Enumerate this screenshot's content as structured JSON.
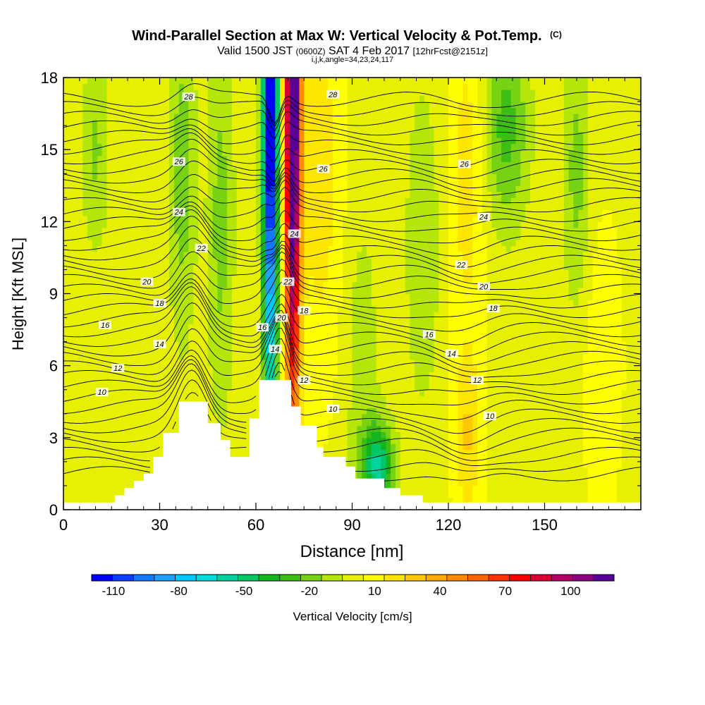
{
  "chart_data": {
    "type": "heatmap",
    "title": "Wind-Parallel Section at Max W: Vertical Velocity & Pot.Temp.",
    "title_mark": "(C)",
    "subtitle_parts": [
      "Valid 1500 JST ",
      "(0600Z)",
      " SAT 4 Feb 2017 ",
      "[12hrFcst@2151z]"
    ],
    "subtitle2": "i,j,k,angle=34,23,24,117",
    "xlabel": "Distance [nm]",
    "ylabel": "Height [Kft MSL]",
    "xlim": [
      0,
      180
    ],
    "ylim": [
      0,
      18
    ],
    "xticks": [
      0,
      30,
      60,
      90,
      120,
      150
    ],
    "yticks": [
      0,
      3,
      6,
      9,
      12,
      15,
      18
    ],
    "colorbar": {
      "label": "Vertical Velocity [cm/s]",
      "labels": [
        "-110",
        "-80",
        "-50",
        "-20",
        "10",
        "40",
        "70",
        "100"
      ],
      "label_values": [
        -110,
        -80,
        -50,
        -20,
        10,
        40,
        70,
        100
      ],
      "min": -120,
      "max": 120,
      "colors": [
        "#0000ff",
        "#0a3cff",
        "#1478ff",
        "#1ea0ff",
        "#00c8ff",
        "#00dcdc",
        "#00d2a0",
        "#00c864",
        "#14b41e",
        "#3cbe14",
        "#78d214",
        "#b4e60a",
        "#e6f000",
        "#ffff00",
        "#ffe600",
        "#ffc800",
        "#ffaa00",
        "#ff8c00",
        "#ff6400",
        "#ff3200",
        "#ff0000",
        "#dc0032",
        "#b40064",
        "#8c0082",
        "#5a0096"
      ]
    },
    "contour_labels": [
      {
        "x": 12,
        "y": 4.9,
        "text": "10"
      },
      {
        "x": 17,
        "y": 5.9,
        "text": "12"
      },
      {
        "x": 30,
        "y": 6.9,
        "text": "14"
      },
      {
        "x": 13,
        "y": 7.7,
        "text": "16"
      },
      {
        "x": 30,
        "y": 8.6,
        "text": "18"
      },
      {
        "x": 26,
        "y": 9.5,
        "text": "20"
      },
      {
        "x": 43,
        "y": 10.9,
        "text": "22"
      },
      {
        "x": 36,
        "y": 12.4,
        "text": "24"
      },
      {
        "x": 36,
        "y": 14.5,
        "text": "26"
      },
      {
        "x": 39,
        "y": 17.2,
        "text": "28"
      },
      {
        "x": 84,
        "y": 4.2,
        "text": "10"
      },
      {
        "x": 75,
        "y": 5.4,
        "text": "12"
      },
      {
        "x": 66,
        "y": 6.7,
        "text": "14"
      },
      {
        "x": 62,
        "y": 7.6,
        "text": "16"
      },
      {
        "x": 68,
        "y": 8,
        "text": "20"
      },
      {
        "x": 75,
        "y": 8.3,
        "text": "18"
      },
      {
        "x": 70,
        "y": 9.5,
        "text": "22"
      },
      {
        "x": 72,
        "y": 11.5,
        "text": "24"
      },
      {
        "x": 81,
        "y": 14.2,
        "text": "26"
      },
      {
        "x": 84,
        "y": 17.3,
        "text": "28"
      },
      {
        "x": 133,
        "y": 3.9,
        "text": "10"
      },
      {
        "x": 129,
        "y": 5.4,
        "text": "12"
      },
      {
        "x": 121,
        "y": 6.5,
        "text": "14"
      },
      {
        "x": 114,
        "y": 7.3,
        "text": "16"
      },
      {
        "x": 134,
        "y": 8.4,
        "text": "18"
      },
      {
        "x": 131,
        "y": 9.3,
        "text": "20"
      },
      {
        "x": 124,
        "y": 10.2,
        "text": "22"
      },
      {
        "x": 131,
        "y": 12.2,
        "text": "24"
      },
      {
        "x": 125,
        "y": 14.4,
        "text": "26"
      }
    ],
    "terrain_profile": [
      [
        0,
        0.3
      ],
      [
        16,
        0.3
      ],
      [
        16,
        0.6
      ],
      [
        19,
        0.6
      ],
      [
        19,
        0.9
      ],
      [
        22,
        0.9
      ],
      [
        22,
        1.2
      ],
      [
        25,
        1.2
      ],
      [
        25,
        1.5
      ],
      [
        28,
        1.5
      ],
      [
        28,
        2.2
      ],
      [
        31,
        2.2
      ],
      [
        31,
        3.2
      ],
      [
        36,
        3.2
      ],
      [
        36,
        4.5
      ],
      [
        45,
        4.5
      ],
      [
        45,
        3.6
      ],
      [
        49,
        3.6
      ],
      [
        49,
        2.9
      ],
      [
        52,
        2.9
      ],
      [
        52,
        2.2
      ],
      [
        58,
        2.2
      ],
      [
        58,
        3.8
      ],
      [
        61,
        3.8
      ],
      [
        61,
        5.4
      ],
      [
        71,
        5.4
      ],
      [
        71,
        4.3
      ],
      [
        74,
        4.3
      ],
      [
        74,
        3.5
      ],
      [
        79,
        3.5
      ],
      [
        79,
        2.6
      ],
      [
        81,
        2.6
      ],
      [
        81,
        2.2
      ],
      [
        88,
        2.2
      ],
      [
        88,
        1.8
      ],
      [
        91,
        1.8
      ],
      [
        91,
        1.3
      ],
      [
        100,
        1.3
      ],
      [
        100,
        0.9
      ],
      [
        105,
        0.9
      ],
      [
        105,
        0.6
      ],
      [
        112,
        0.6
      ],
      [
        112,
        0.3
      ],
      [
        180,
        0.3
      ]
    ],
    "velocity_features": [
      {
        "x": 64.5,
        "y": 18,
        "sx": 1.6,
        "sy": 10,
        "v": -140
      },
      {
        "x": 71.5,
        "y": 18,
        "sx": 1.7,
        "sy": 10,
        "v": 140
      },
      {
        "x": 80,
        "y": 14,
        "sx": 5,
        "sy": 6,
        "v": 18
      },
      {
        "x": 126,
        "y": 14,
        "sx": 4,
        "sy": 5,
        "v": 18
      },
      {
        "x": 126,
        "y": 3,
        "sx": 3,
        "sy": 2.5,
        "v": 22
      },
      {
        "x": 37,
        "y": 14,
        "sx": 3,
        "sy": 5,
        "v": -22
      },
      {
        "x": 49,
        "y": 12,
        "sx": 3,
        "sy": 6,
        "v": -20
      },
      {
        "x": 98,
        "y": 1.8,
        "sx": 3.5,
        "sy": 1.3,
        "v": -55
      },
      {
        "x": 138,
        "y": 16,
        "sx": 5,
        "sy": 3,
        "v": -30
      },
      {
        "x": 160,
        "y": 14,
        "sx": 3,
        "sy": 4,
        "v": -20
      },
      {
        "x": 10,
        "y": 15,
        "sx": 3,
        "sy": 3,
        "v": -18
      },
      {
        "x": 112,
        "y": 11,
        "sx": 4,
        "sy": 5,
        "v": -15
      },
      {
        "x": 168,
        "y": 6,
        "sx": 4,
        "sy": 4,
        "v": 12
      },
      {
        "x": 93,
        "y": 6,
        "sx": 4,
        "sy": 5,
        "v": -12
      }
    ]
  }
}
